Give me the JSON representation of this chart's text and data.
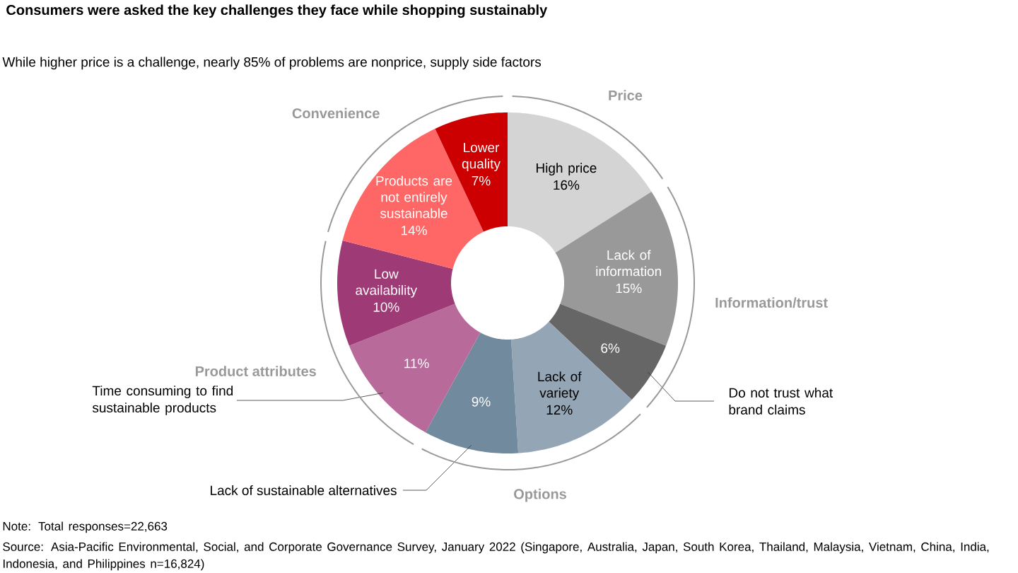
{
  "chart_data": {
    "type": "donut",
    "title": "Consumers were asked the key challenges they face while shopping sustainably",
    "subtitle": "While higher price is a challenge, nearly 85% of problems are nonprice, supply side factors",
    "categories": [
      "High price",
      "Lack of information",
      "Do not trust what brand claims",
      "Lack of variety",
      "Lack of sustainable alternatives",
      "Time consuming to find sustainable products",
      "Low availability",
      "Products are not entirely sustainable",
      "Lower quality"
    ],
    "values": [
      16,
      15,
      6,
      12,
      9,
      11,
      10,
      14,
      7
    ],
    "value_labels": [
      "16%",
      "15%",
      "6%",
      "12%",
      "9%",
      "11%",
      "10%",
      "14%",
      "7%"
    ],
    "colors": [
      "#d4d4d4",
      "#999999",
      "#666666",
      "#94a6b6",
      "#728a9e",
      "#b86b9b",
      "#9e3a75",
      "#ff6666",
      "#cc0000"
    ],
    "annotations": [
      "Price",
      "Information/trust",
      "Options",
      "Product attributes",
      "Convenience",
      "Note: Total responses=22,663",
      "Source: Asia-Pacific Environmental, Social, and Corporate Governance Survey, January 2022 (Singapore, Australia, Japan, South Korea, Thailand, Malaysia, Vietnam, China, India, Indonesia, and Philippines n=16,824)"
    ]
  }
}
